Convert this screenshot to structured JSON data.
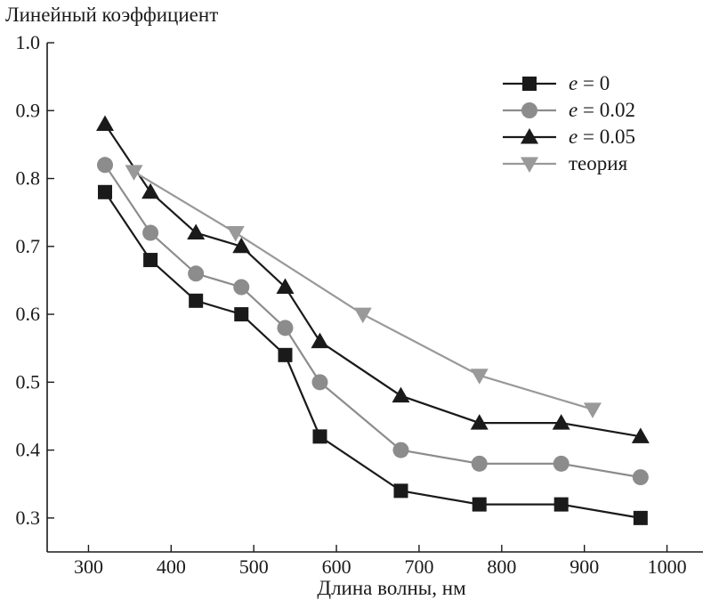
{
  "chart_data": {
    "type": "line",
    "title": "",
    "ylabel": "Линейный коэффициент",
    "xlabel": "Длина волны, нм",
    "xlim": [
      250,
      1050
    ],
    "ylim": [
      0.25,
      1.0
    ],
    "xticks": [
      300,
      400,
      500,
      600,
      700,
      800,
      900,
      1000
    ],
    "yticks": [
      0.3,
      0.4,
      0.5,
      0.6,
      0.7,
      0.8,
      0.9,
      1.0
    ],
    "xtick_labels": [
      "300",
      "400",
      "500",
      "600",
      "700",
      "800",
      "900",
      "1000"
    ],
    "ytick_labels": [
      "0.3",
      "0.4",
      "0.5",
      "0.6",
      "0.7",
      "0.8",
      "0.9",
      "1.0"
    ],
    "grid": false,
    "legend_position": "top-right",
    "series": [
      {
        "name": "e = 0",
        "legend_var": "e",
        "legend_rest": " = 0",
        "color": "#1a1a1a",
        "marker": "square",
        "x": [
          320,
          375,
          430,
          485,
          538,
          580,
          678,
          773,
          872,
          968
        ],
        "y": [
          0.78,
          0.68,
          0.62,
          0.6,
          0.54,
          0.42,
          0.34,
          0.32,
          0.32,
          0.3
        ]
      },
      {
        "name": "e = 0.02",
        "legend_var": "e",
        "legend_rest": " = 0.02",
        "color": "#8c8c8c",
        "marker": "circle",
        "x": [
          320,
          375,
          430,
          485,
          538,
          580,
          678,
          773,
          872,
          968
        ],
        "y": [
          0.82,
          0.72,
          0.66,
          0.64,
          0.58,
          0.5,
          0.4,
          0.38,
          0.38,
          0.36
        ]
      },
      {
        "name": "e = 0.05",
        "legend_var": "e",
        "legend_rest": " = 0.05",
        "color": "#1a1a1a",
        "marker": "triangle-up",
        "x": [
          320,
          375,
          430,
          485,
          538,
          580,
          678,
          773,
          872,
          968
        ],
        "y": [
          0.88,
          0.78,
          0.72,
          0.7,
          0.64,
          0.56,
          0.48,
          0.44,
          0.44,
          0.42
        ]
      },
      {
        "name": "теория",
        "legend_var": "",
        "legend_rest": "теория",
        "color": "#999999",
        "marker": "triangle-down",
        "x": [
          355,
          478,
          632,
          773,
          910
        ],
        "y": [
          0.81,
          0.72,
          0.6,
          0.51,
          0.46
        ]
      }
    ]
  }
}
